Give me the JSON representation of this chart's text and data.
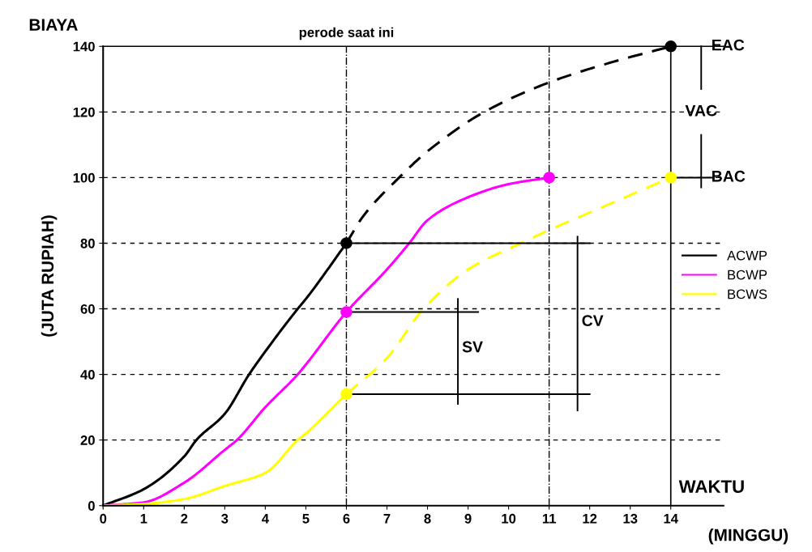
{
  "chart_data": {
    "type": "line",
    "title": "BIAYA",
    "xlabel": "(MINGGU)",
    "ylabel": "(JUTA RUPIAH)",
    "xlim": [
      0,
      15.3
    ],
    "xticks": [
      0,
      1,
      2,
      3,
      4,
      5,
      6,
      7,
      8,
      9,
      10,
      11,
      12,
      13,
      14
    ],
    "ylim": [
      0,
      140
    ],
    "yticks": [
      0,
      20,
      40,
      60,
      80,
      100,
      120,
      140
    ],
    "grid": "y",
    "legend": "right",
    "series": [
      {
        "name": "ACWP",
        "color": "#000000",
        "line_style": "solid",
        "x": [
          0,
          1,
          2,
          2.3,
          3,
          3.6,
          4,
          4.8,
          5,
          6
        ],
        "values": [
          0,
          5,
          15,
          20,
          28,
          40,
          47,
          60,
          63,
          80
        ]
      },
      {
        "name": "BCWP",
        "color": "#ff00ff",
        "line_style": "solid",
        "x": [
          0,
          1,
          2,
          3,
          3.3,
          4,
          4.8,
          5,
          6,
          7,
          7.55,
          8,
          9,
          10,
          11
        ],
        "values": [
          0,
          1,
          7,
          17,
          20,
          30,
          40,
          43,
          59,
          72,
          80,
          87,
          94,
          98,
          100
        ]
      },
      {
        "name": "BCWS",
        "color": "#ffff00",
        "line_style": "solid",
        "x": [
          0,
          1,
          2,
          3,
          4,
          4.8,
          5,
          6
        ],
        "values": [
          0,
          0.5,
          2,
          6,
          10,
          20,
          22,
          34
        ]
      },
      {
        "color": "#000000",
        "line_style": "dashed",
        "x": [
          6,
          6.4,
          7.3,
          8,
          9.4,
          11,
          12.5,
          14
        ],
        "values": [
          80,
          88,
          100,
          108,
          120,
          129,
          135,
          140
        ]
      },
      {
        "color": "#ffff00",
        "line_style": "dashed",
        "x": [
          6,
          7,
          7.9,
          9,
          10.3,
          11,
          12.5,
          14
        ],
        "values": [
          34,
          45,
          60,
          72,
          80,
          84,
          92,
          100
        ]
      },
      {
        "type": "scatter",
        "marker": "circle",
        "color": "#000000",
        "x": [
          6,
          14
        ],
        "values": [
          80,
          140
        ]
      },
      {
        "type": "scatter",
        "marker": "circle",
        "color": "#ff00ff",
        "x": [
          6,
          11
        ],
        "values": [
          59,
          100
        ]
      },
      {
        "type": "scatter",
        "marker": "circle",
        "color": "#ffff00",
        "x": [
          6,
          14
        ],
        "values": [
          34,
          100
        ]
      },
      {
        "color": "#000000",
        "line_style": "solid",
        "x": [
          6,
          12
        ],
        "values": [
          80,
          80
        ]
      },
      {
        "color": "#000000",
        "line_style": "solid",
        "x": [
          6,
          9.25
        ],
        "values": [
          59,
          59
        ]
      },
      {
        "color": "#000000",
        "line_style": "solid",
        "x": [
          6,
          12
        ],
        "values": [
          34,
          34
        ]
      },
      {
        "color": "#000000",
        "line_style": "solid",
        "x": [
          8.75,
          8.75
        ],
        "values": [
          31,
          63
        ]
      },
      {
        "color": "#000000",
        "line_style": "solid",
        "x": [
          11.7,
          11.7
        ],
        "values": [
          29,
          82
        ]
      },
      {
        "color": "#000000",
        "line_style": "solid",
        "x": [
          14,
          15.05
        ],
        "values": [
          100,
          100
        ]
      },
      {
        "color": "#000000",
        "line_style": "solid",
        "x": [
          14.75,
          14.75
        ],
        "values": [
          97,
          113
        ]
      },
      {
        "color": "#000000",
        "line_style": "solid",
        "x": [
          14.75,
          14.75
        ],
        "values": [
          127,
          140
        ]
      }
    ],
    "ref_lines": [
      {
        "axis": "x",
        "value": 6,
        "label": "perode saat ini",
        "line_style": "dashdot",
        "color": "#000000"
      },
      {
        "axis": "x",
        "value": 11,
        "line_style": "dashdot",
        "color": "#000000"
      },
      {
        "axis": "x",
        "value": 14,
        "line_style": "solid",
        "color": "#000000"
      },
      {
        "axis": "y",
        "value": 140,
        "line_style": "solid",
        "color": "#000000"
      }
    ],
    "annotations": [
      "WAKTU",
      {
        "text": "SV",
        "x": 8.75,
        "y": 48
      },
      {
        "text": "CV",
        "x": 11.7,
        "y": 56
      },
      {
        "text": "EAC",
        "x": 14,
        "y": 140
      },
      {
        "text": "BAC",
        "x": 14,
        "y": 100
      },
      {
        "text": "VAC",
        "x": 14,
        "y": 120
      }
    ]
  }
}
